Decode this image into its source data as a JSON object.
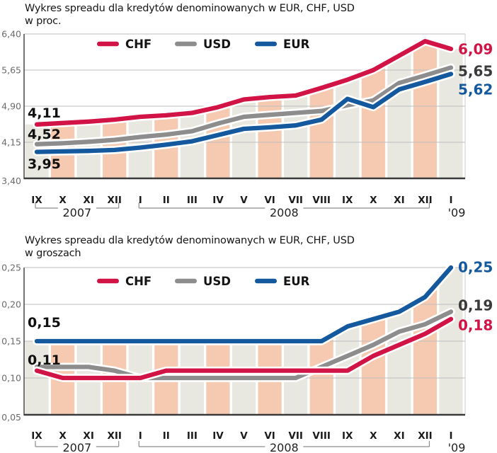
{
  "page_bg": "#ffffff",
  "colors": {
    "chf": "#d11345",
    "usd_line": "#8d8d8d",
    "usd_label": "#3a3a3a",
    "eur": "#14589e",
    "stripe_pink": "#f6c9b1",
    "stripe_gray": "#e8e8e0",
    "gridline": "#bdbdbd",
    "axis": "#3a3a3a",
    "bracket": "#8c8c8c",
    "ytick_text": "#6b6b6b",
    "month_text": "#1b1b1b",
    "start_label_text": "#101010"
  },
  "chart_data": [
    {
      "type": "line",
      "title": "Wykres spreadu dla kredytów denominowanych w EUR, CHF, USD",
      "subtitle": "w proc.",
      "months": [
        "IX",
        "X",
        "XI",
        "XII",
        "I",
        "II",
        "III",
        "IV",
        "V",
        "VI",
        "VII",
        "VIII",
        "IX",
        "X",
        "XI",
        "XII",
        "I"
      ],
      "year_groups": [
        {
          "label": "2007",
          "from": 0,
          "to": 3
        },
        {
          "label": "2008",
          "from": 4,
          "to": 15
        },
        {
          "label": "'09",
          "from": 16,
          "to": 16
        }
      ],
      "y_ticks": [
        "6,40",
        "5,65",
        "4,90",
        "4,15",
        "3,40"
      ],
      "y_tick_values": [
        6.4,
        5.65,
        4.9,
        4.15,
        3.4
      ],
      "ylim": [
        3.4,
        6.4
      ],
      "legend": [
        {
          "label": "CHF",
          "color": "#d11345"
        },
        {
          "label": "USD",
          "color": "#8d8d8d"
        },
        {
          "label": "EUR",
          "color": "#14589e"
        }
      ],
      "series": [
        {
          "name": "CHF",
          "color": "#d11345",
          "label_color": "#d11345",
          "values": [
            4.52,
            4.55,
            4.58,
            4.62,
            4.68,
            4.71,
            4.76,
            4.88,
            5.04,
            5.09,
            5.12,
            5.28,
            5.45,
            5.65,
            5.95,
            6.25,
            6.09
          ]
        },
        {
          "name": "USD",
          "color": "#8d8d8d",
          "label_color": "#3a3a3a",
          "values": [
            4.11,
            4.13,
            4.16,
            4.2,
            4.26,
            4.31,
            4.38,
            4.54,
            4.68,
            4.72,
            4.76,
            4.8,
            4.95,
            5.02,
            5.35,
            5.5,
            5.65
          ]
        },
        {
          "name": "EUR",
          "color": "#14589e",
          "label_color": "#14589e",
          "values": [
            3.95,
            3.96,
            3.97,
            3.99,
            4.04,
            4.1,
            4.17,
            4.3,
            4.43,
            4.46,
            4.5,
            4.62,
            5.02,
            4.88,
            5.28,
            5.44,
            5.62
          ]
        }
      ],
      "start_labels": [
        {
          "text": "4,11",
          "series": "USD"
        },
        {
          "text": "4,52",
          "series": "CHF"
        },
        {
          "text": "3,95",
          "series": "EUR"
        }
      ],
      "end_labels": [
        {
          "text": "6,09",
          "series": "CHF"
        },
        {
          "text": "5,65",
          "series": "USD"
        },
        {
          "text": "5,62",
          "series": "EUR"
        }
      ]
    },
    {
      "type": "line",
      "title": "Wykres spreadu dla kredytów denominowanych w EUR, CHF, USD",
      "subtitle": "w groszach",
      "months": [
        "IX",
        "X",
        "XI",
        "XII",
        "I",
        "II",
        "III",
        "IV",
        "V",
        "VI",
        "VII",
        "VIII",
        "IX",
        "X",
        "XI",
        "XII",
        "I"
      ],
      "year_groups": [
        {
          "label": "2007",
          "from": 0,
          "to": 3
        },
        {
          "label": "2008",
          "from": 4,
          "to": 15
        },
        {
          "label": "'09",
          "from": 16,
          "to": 16
        }
      ],
      "y_ticks": [
        "0,25",
        "0,20",
        "0,15",
        "0,10",
        "0,05"
      ],
      "y_tick_values": [
        0.25,
        0.2,
        0.15,
        0.1,
        0.05
      ],
      "ylim": [
        0.05,
        0.25
      ],
      "legend": [
        {
          "label": "CHF",
          "color": "#d11345"
        },
        {
          "label": "USD",
          "color": "#8d8d8d"
        },
        {
          "label": "EUR",
          "color": "#14589e"
        }
      ],
      "series": [
        {
          "name": "CHF",
          "color": "#d11345",
          "label_color": "#d11345",
          "values": [
            0.11,
            0.1,
            0.1,
            0.1,
            0.1,
            0.11,
            0.11,
            0.11,
            0.11,
            0.11,
            0.11,
            0.11,
            0.11,
            0.13,
            0.145,
            0.16,
            0.18
          ]
        },
        {
          "name": "USD",
          "color": "#8d8d8d",
          "label_color": "#3a3a3a",
          "values": [
            0.115,
            0.115,
            0.115,
            0.11,
            0.1,
            0.1,
            0.1,
            0.1,
            0.1,
            0.1,
            0.1,
            0.115,
            0.13,
            0.145,
            0.163,
            0.173,
            0.19
          ]
        },
        {
          "name": "EUR",
          "color": "#14589e",
          "label_color": "#14589e",
          "values": [
            0.15,
            0.15,
            0.15,
            0.15,
            0.15,
            0.15,
            0.15,
            0.15,
            0.15,
            0.15,
            0.15,
            0.15,
            0.17,
            0.18,
            0.19,
            0.21,
            0.25
          ]
        }
      ],
      "start_labels": [
        {
          "text": "0,15",
          "series": "EUR"
        },
        {
          "text": "0,11",
          "series": "CHF"
        }
      ],
      "end_labels": [
        {
          "text": "0,25",
          "series": "EUR"
        },
        {
          "text": "0,19",
          "series": "USD"
        },
        {
          "text": "0,18",
          "series": "CHF"
        }
      ]
    }
  ]
}
